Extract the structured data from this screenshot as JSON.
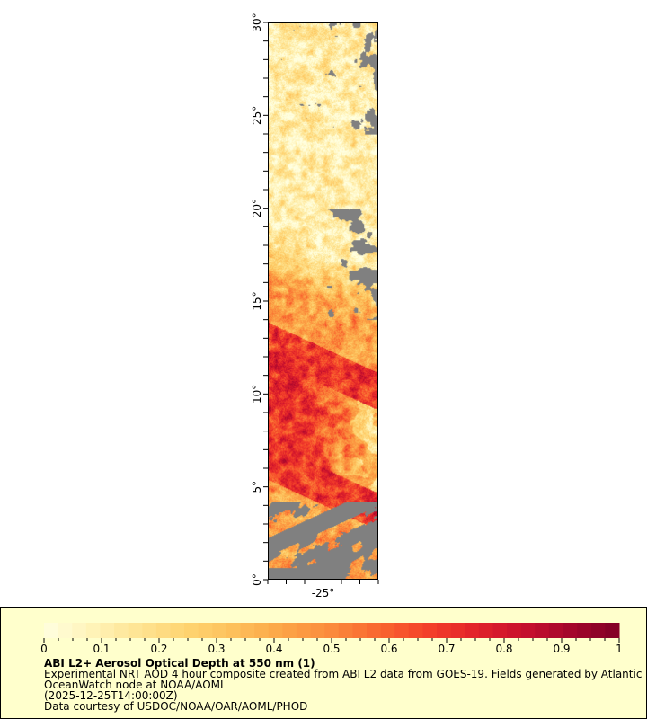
{
  "map": {
    "lat_range": [
      0,
      30
    ],
    "lon_range": [
      -28,
      -22
    ],
    "lat_ticks": [
      "0°",
      "5°",
      "10°",
      "15°",
      "20°",
      "25°",
      "30°"
    ],
    "lat_tick_values": [
      0,
      5,
      10,
      15,
      20,
      25,
      30
    ],
    "lon_ticks": [
      "-25°"
    ],
    "lon_tick_values": [
      -25
    ],
    "missing_color": "#808080"
  },
  "legend": {
    "range": [
      0,
      1
    ],
    "tick_labels": [
      "0",
      "0.1",
      "0.2",
      "0.3",
      "0.4",
      "0.5",
      "0.6",
      "0.7",
      "0.8",
      "0.9",
      "1"
    ],
    "colormap": [
      "#ffffe0",
      "#fff3b8",
      "#fee391",
      "#fed370",
      "#fdbf5a",
      "#fca446",
      "#fb8a3c",
      "#f9662f",
      "#f4402a",
      "#e2232a",
      "#c8102e",
      "#a3062b",
      "#800026"
    ],
    "background": "#ffffcc",
    "title": "ABI L2+ Aerosol Optical Depth at 550 nm (1)",
    "line1": "Experimental NRT AOD 4 hour composite created from ABI L2 data from GOES-19. Fields generated by Atlantic",
    "line2": "OceanWatch node at NOAA/AOML",
    "line3": "(2025-12-25T14:00:00Z)",
    "line4": "Data courtesy of USDOC/NOAA/OAR/AOML/PHOD"
  }
}
